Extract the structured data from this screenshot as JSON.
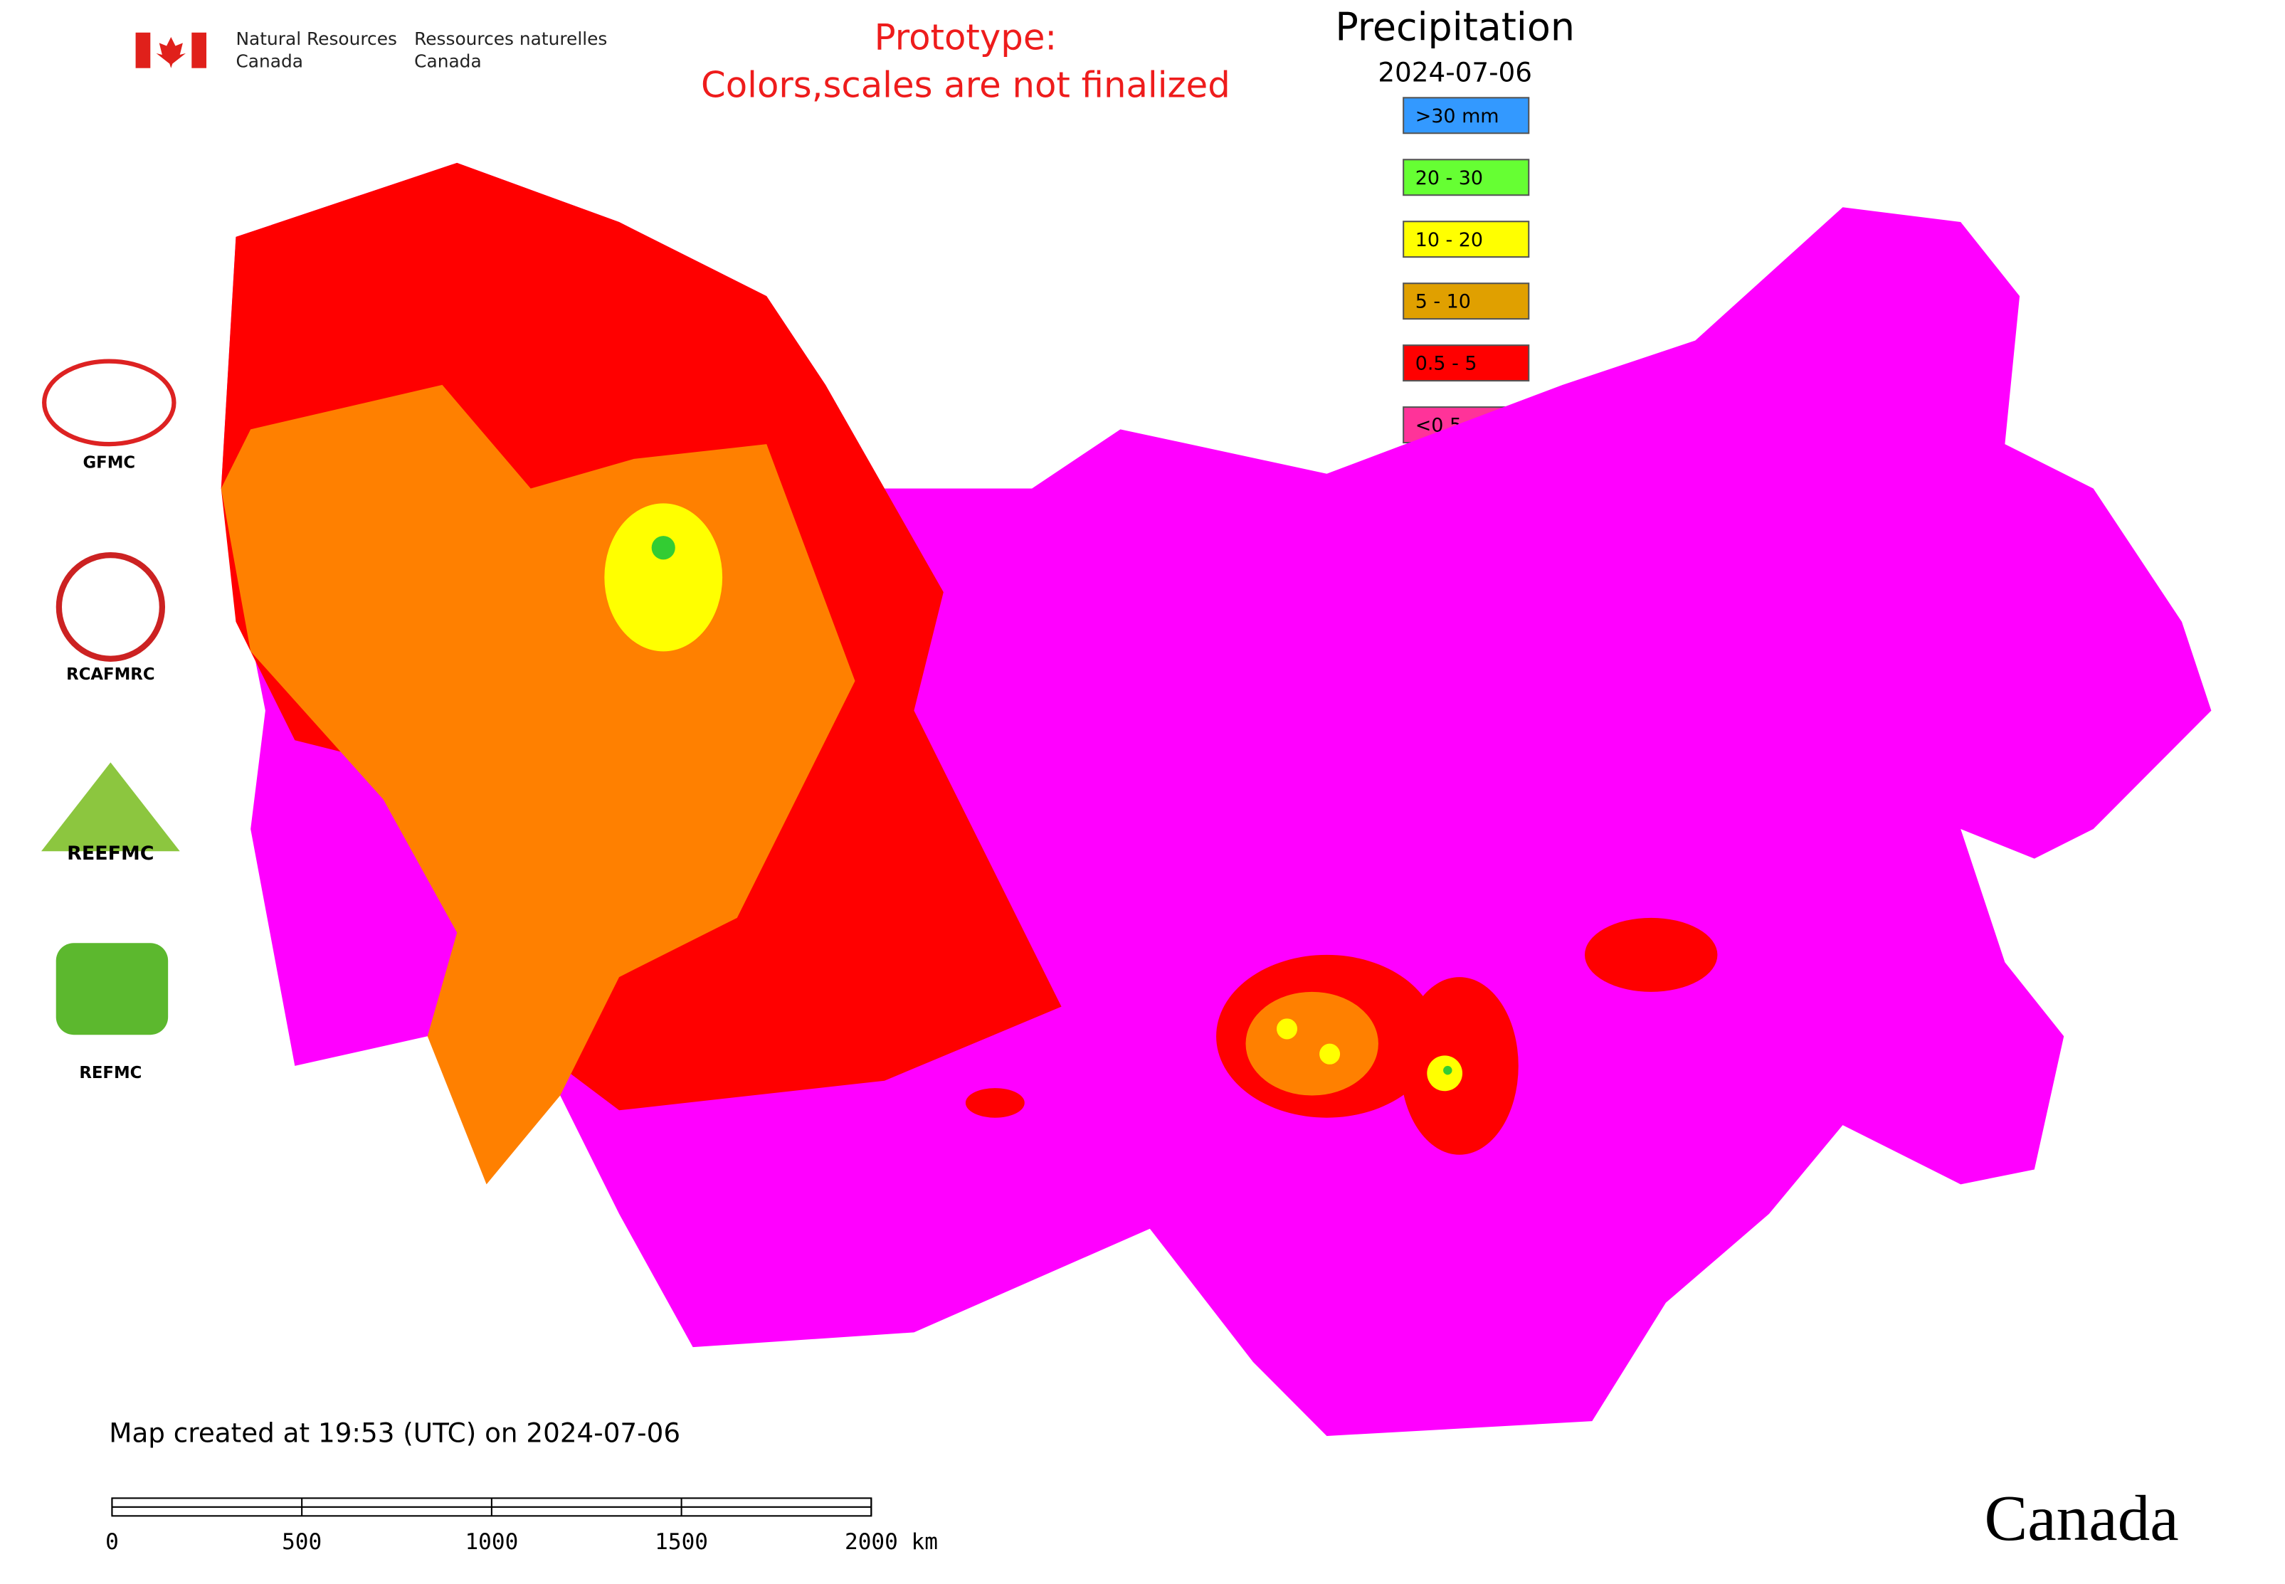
{
  "header": {
    "agency_en": [
      "Natural Resources",
      "Canada"
    ],
    "agency_fr": [
      "Ressources naturelles",
      "Canada"
    ]
  },
  "notice": [
    "Prototype:",
    "Colors,scales are not finalized"
  ],
  "title": "Precipitation",
  "date": "2024-07-06",
  "legend": [
    {
      "label": ">30 mm",
      "color": "#3399ff"
    },
    {
      "label": "20 - 30",
      "color": "#66ff33"
    },
    {
      "label": "10 - 20",
      "color": "#ffff00"
    },
    {
      "label": "5 - 10",
      "color": "#e0a000"
    },
    {
      "label": "0.5 - 5",
      "color": "#ff0000"
    },
    {
      "label": "<0.5",
      "color": "#ff3399"
    }
  ],
  "logos": [
    "GFMC",
    "RCAFMRC",
    "REEFMC",
    "REFMC"
  ],
  "footer": "Map created at 19:53 (UTC) on 2024-07-06",
  "scale_bar": [
    "0",
    "500",
    "1000",
    "1500",
    "2000 km"
  ],
  "wordmark": "Canada"
}
